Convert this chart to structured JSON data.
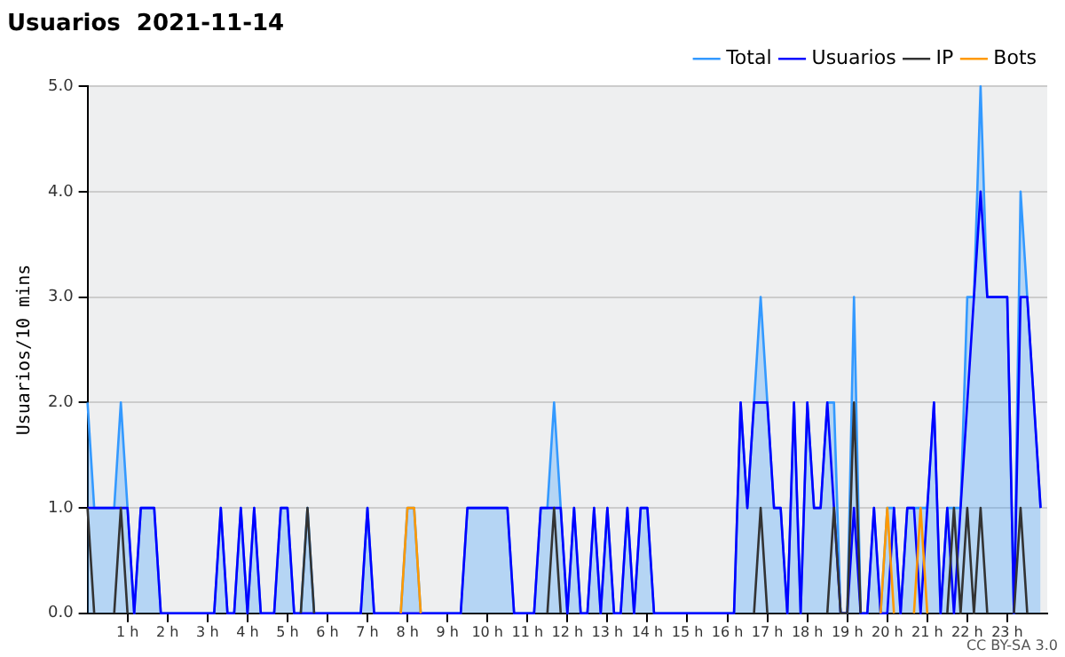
{
  "chart_data": {
    "type": "line",
    "title": "Usuarios  2021-11-14",
    "ylabel": "Usuarios/10 mins",
    "annotations": [
      "CC BY-SA 3.0"
    ],
    "x": [
      0,
      0.167,
      0.333,
      0.5,
      0.667,
      0.833,
      1,
      1.167,
      1.333,
      1.5,
      1.667,
      1.833,
      2,
      2.167,
      2.333,
      2.5,
      2.667,
      2.833,
      3,
      3.167,
      3.333,
      3.5,
      3.667,
      3.833,
      4,
      4.167,
      4.333,
      4.5,
      4.667,
      4.833,
      5,
      5.167,
      5.333,
      5.5,
      5.667,
      5.833,
      6,
      6.167,
      6.333,
      6.5,
      6.667,
      6.833,
      7,
      7.167,
      7.333,
      7.5,
      7.667,
      7.833,
      8,
      8.167,
      8.333,
      8.5,
      8.667,
      8.833,
      9,
      9.167,
      9.333,
      9.5,
      9.667,
      9.833,
      10,
      10.167,
      10.333,
      10.5,
      10.667,
      10.833,
      11,
      11.167,
      11.333,
      11.5,
      11.667,
      11.833,
      12,
      12.167,
      12.333,
      12.5,
      12.667,
      12.833,
      13,
      13.167,
      13.333,
      13.5,
      13.667,
      13.833,
      14,
      14.167,
      14.333,
      14.5,
      14.667,
      14.833,
      15,
      15.167,
      15.333,
      15.5,
      15.667,
      15.833,
      16,
      16.167,
      16.333,
      16.5,
      16.667,
      16.833,
      17,
      17.167,
      17.333,
      17.5,
      17.667,
      17.833,
      18,
      18.167,
      18.333,
      18.5,
      18.667,
      18.833,
      19,
      19.167,
      19.333,
      19.5,
      19.667,
      19.833,
      20,
      20.167,
      20.333,
      20.5,
      20.667,
      20.833,
      21,
      21.167,
      21.333,
      21.5,
      21.667,
      21.833,
      22,
      22.167,
      22.333,
      22.5,
      22.667,
      22.833,
      23,
      23.167,
      23.333,
      23.5,
      23.667,
      23.833
    ],
    "series": [
      {
        "name": "Total",
        "type": "area",
        "color": "#3399ff",
        "values": [
          2,
          1,
          1,
          1,
          1,
          2,
          1,
          0,
          1,
          1,
          1,
          0,
          0,
          0,
          0,
          0,
          0,
          0,
          0,
          0,
          1,
          0,
          0,
          1,
          0,
          1,
          0,
          0,
          0,
          1,
          1,
          0,
          0,
          1,
          0,
          0,
          0,
          0,
          0,
          0,
          0,
          0,
          1,
          0,
          0,
          0,
          0,
          0,
          1,
          1,
          0,
          0,
          0,
          0,
          0,
          0,
          0,
          1,
          1,
          1,
          1,
          1,
          1,
          1,
          0,
          0,
          0,
          0,
          1,
          1,
          2,
          1,
          0,
          1,
          0,
          0,
          1,
          0,
          1,
          0,
          0,
          1,
          0,
          1,
          1,
          0,
          0,
          0,
          0,
          0,
          0,
          0,
          0,
          0,
          0,
          0,
          0,
          0,
          2,
          1,
          2,
          3,
          2,
          1,
          1,
          0,
          2,
          0,
          2,
          1,
          1,
          2,
          2,
          0,
          0,
          3,
          0,
          0,
          1,
          0,
          1,
          1,
          0,
          1,
          1,
          1,
          1,
          2,
          0,
          1,
          1,
          1,
          3,
          3,
          5,
          3,
          3,
          3,
          3,
          0,
          4,
          3,
          2,
          1
        ]
      },
      {
        "name": "Usuarios",
        "type": "line",
        "color": "#0000ff",
        "values": [
          1,
          1,
          1,
          1,
          1,
          1,
          1,
          0,
          1,
          1,
          1,
          0,
          0,
          0,
          0,
          0,
          0,
          0,
          0,
          0,
          1,
          0,
          0,
          1,
          0,
          1,
          0,
          0,
          0,
          1,
          1,
          0,
          0,
          0,
          0,
          0,
          0,
          0,
          0,
          0,
          0,
          0,
          1,
          0,
          0,
          0,
          0,
          0,
          0,
          0,
          0,
          0,
          0,
          0,
          0,
          0,
          0,
          1,
          1,
          1,
          1,
          1,
          1,
          1,
          0,
          0,
          0,
          0,
          1,
          1,
          1,
          1,
          0,
          1,
          0,
          0,
          1,
          0,
          1,
          0,
          0,
          1,
          0,
          1,
          1,
          0,
          0,
          0,
          0,
          0,
          0,
          0,
          0,
          0,
          0,
          0,
          0,
          0,
          2,
          1,
          2,
          2,
          2,
          1,
          1,
          0,
          2,
          0,
          2,
          1,
          1,
          2,
          1,
          0,
          0,
          1,
          0,
          0,
          1,
          0,
          0,
          1,
          0,
          1,
          1,
          0,
          1,
          2,
          0,
          1,
          0,
          1,
          2,
          3,
          4,
          3,
          3,
          3,
          3,
          0,
          3,
          3,
          2,
          1
        ]
      },
      {
        "name": "IP",
        "type": "line",
        "color": "#333333",
        "values": [
          1,
          0,
          null,
          null,
          0,
          1,
          0,
          null,
          null,
          null,
          null,
          null,
          null,
          null,
          null,
          null,
          null,
          null,
          null,
          null,
          null,
          null,
          null,
          null,
          null,
          null,
          null,
          null,
          null,
          null,
          null,
          null,
          0,
          1,
          0,
          null,
          null,
          null,
          null,
          null,
          null,
          null,
          null,
          null,
          null,
          null,
          null,
          null,
          null,
          null,
          null,
          null,
          null,
          null,
          null,
          null,
          null,
          null,
          null,
          null,
          null,
          null,
          null,
          null,
          null,
          null,
          null,
          null,
          null,
          0,
          1,
          0,
          null,
          null,
          null,
          null,
          null,
          null,
          null,
          null,
          null,
          null,
          null,
          null,
          null,
          null,
          null,
          null,
          null,
          null,
          null,
          null,
          null,
          null,
          null,
          null,
          null,
          null,
          null,
          null,
          0,
          1,
          0,
          null,
          null,
          null,
          null,
          null,
          null,
          null,
          null,
          0,
          1,
          0,
          0,
          2,
          0,
          null,
          null,
          null,
          null,
          null,
          null,
          null,
          null,
          null,
          null,
          null,
          null,
          0,
          1,
          0,
          1,
          0,
          1,
          0,
          null,
          null,
          null,
          0,
          1,
          0,
          null,
          null
        ]
      },
      {
        "name": "Bots",
        "type": "line",
        "color": "#ff9900",
        "values": [
          null,
          null,
          null,
          null,
          null,
          null,
          null,
          null,
          null,
          null,
          null,
          null,
          null,
          null,
          null,
          null,
          null,
          null,
          null,
          null,
          null,
          null,
          null,
          null,
          null,
          null,
          null,
          null,
          null,
          null,
          null,
          null,
          null,
          null,
          null,
          null,
          null,
          null,
          null,
          null,
          null,
          null,
          null,
          null,
          null,
          null,
          null,
          0,
          1,
          1,
          0,
          null,
          null,
          null,
          null,
          null,
          null,
          null,
          null,
          null,
          null,
          null,
          null,
          null,
          null,
          null,
          null,
          null,
          null,
          null,
          null,
          null,
          null,
          null,
          null,
          null,
          null,
          null,
          null,
          null,
          null,
          null,
          null,
          null,
          null,
          null,
          null,
          null,
          null,
          null,
          null,
          null,
          null,
          null,
          null,
          null,
          null,
          null,
          null,
          null,
          null,
          null,
          null,
          null,
          null,
          null,
          null,
          null,
          null,
          null,
          null,
          null,
          null,
          null,
          null,
          null,
          null,
          null,
          null,
          0,
          1,
          0,
          null,
          null,
          0,
          1,
          0,
          null,
          null,
          null,
          null,
          null,
          null,
          null,
          null,
          null,
          null,
          null,
          null,
          null,
          null,
          null,
          null,
          null
        ]
      }
    ],
    "xlim": [
      0,
      24
    ],
    "xticks": [
      {
        "value": 1,
        "label": "1 h"
      },
      {
        "value": 2,
        "label": "2 h"
      },
      {
        "value": 3,
        "label": "3 h"
      },
      {
        "value": 4,
        "label": "4 h"
      },
      {
        "value": 5,
        "label": "5 h"
      },
      {
        "value": 6,
        "label": "6 h"
      },
      {
        "value": 7,
        "label": "7 h"
      },
      {
        "value": 8,
        "label": "8 h"
      },
      {
        "value": 9,
        "label": "9 h"
      },
      {
        "value": 10,
        "label": "10 h"
      },
      {
        "value": 11,
        "label": "11 h"
      },
      {
        "value": 12,
        "label": "12 h"
      },
      {
        "value": 13,
        "label": "13 h"
      },
      {
        "value": 14,
        "label": "14 h"
      },
      {
        "value": 15,
        "label": "15 h"
      },
      {
        "value": 16,
        "label": "16 h"
      },
      {
        "value": 17,
        "label": "17 h"
      },
      {
        "value": 18,
        "label": "18 h"
      },
      {
        "value": 19,
        "label": "19 h"
      },
      {
        "value": 20,
        "label": "20 h"
      },
      {
        "value": 21,
        "label": "21 h"
      },
      {
        "value": 22,
        "label": "22 h"
      },
      {
        "value": 23,
        "label": "23 h"
      }
    ],
    "ylim": [
      0,
      5
    ],
    "yticks": [
      {
        "value": 0,
        "label": "0.0"
      },
      {
        "value": 1,
        "label": "1.0"
      },
      {
        "value": 2,
        "label": "2.0"
      },
      {
        "value": 3,
        "label": "3.0"
      },
      {
        "value": 4,
        "label": "4.0"
      },
      {
        "value": 5,
        "label": "5.0"
      }
    ],
    "grid": "y",
    "legend": "top right",
    "marker": "none",
    "line_style": "solid"
  }
}
